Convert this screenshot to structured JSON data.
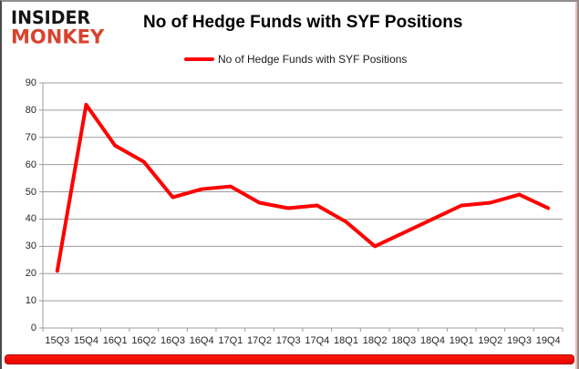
{
  "branding": {
    "logo_line1": "INSIDER",
    "logo_line2": "MONKEY",
    "logo_color1": "#141414",
    "logo_color2": "#d8432e"
  },
  "header": {
    "title": "No of Hedge Funds with SYF Positions"
  },
  "legend": {
    "label": "No of Hedge Funds with SYF Positions",
    "swatch_color": "#ff0000"
  },
  "chart_data": {
    "type": "line",
    "title": "No of Hedge Funds with SYF Positions",
    "categories": [
      "15Q3",
      "15Q4",
      "16Q1",
      "16Q2",
      "16Q3",
      "16Q4",
      "17Q1",
      "17Q2",
      "17Q3",
      "17Q4",
      "18Q1",
      "18Q2",
      "18Q3",
      "18Q4",
      "19Q1",
      "19Q2",
      "19Q3",
      "19Q4"
    ],
    "series": [
      {
        "name": "No of Hedge Funds with SYF Positions",
        "color": "#ff0000",
        "values": [
          21,
          82,
          67,
          61,
          48,
          51,
          52,
          46,
          44,
          45,
          39,
          30,
          35,
          40,
          45,
          46,
          49,
          44
        ]
      }
    ],
    "xlabel": "",
    "ylabel": "",
    "ylim": [
      0,
      90
    ],
    "ytick_interval": 10,
    "grid": true,
    "legend_position": "top",
    "grid_color": "#9c9c9c",
    "axis_label_color": "#262626"
  },
  "footer": {
    "stripe_color": "#e60000"
  }
}
